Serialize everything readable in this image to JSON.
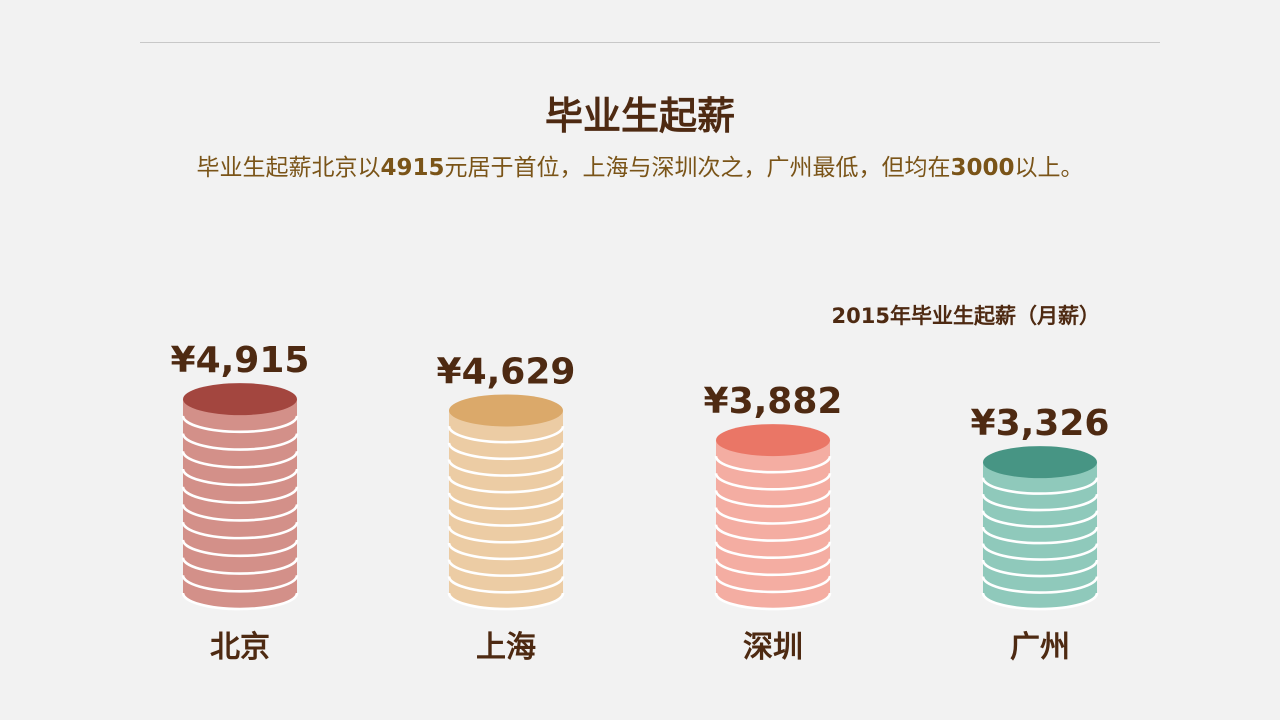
{
  "page": {
    "title": "毕业生起薪",
    "subtitle": {
      "s1": "毕业生起薪北京以",
      "b1": "4915",
      "s2": "元居于首位，上海与深圳次之，广州最低，但均在",
      "b2": "3000",
      "s3": "以上。"
    }
  },
  "chart_data": {
    "type": "bar",
    "title": "2015年毕业生起薪（月薪）",
    "categories": [
      "北京",
      "上海",
      "深圳",
      "广州"
    ],
    "values": [
      4915,
      4629,
      3882,
      3326
    ],
    "value_labels": [
      "¥4,915",
      "¥4,629",
      "¥3,882",
      "¥3,326"
    ],
    "colors": [
      {
        "body": "#d39089",
        "top": "#a3463f"
      },
      {
        "body": "#eccca4",
        "top": "#dba96a"
      },
      {
        "body": "#f4ada2",
        "top": "#ea7666"
      },
      {
        "body": "#8fc9bb",
        "top": "#479584"
      }
    ],
    "grid": false,
    "legend": "none",
    "xlabel": "",
    "ylabel": ""
  }
}
